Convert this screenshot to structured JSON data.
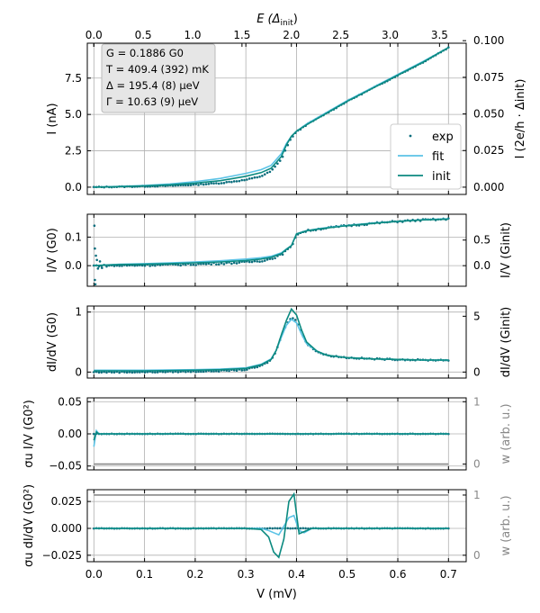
{
  "colors": {
    "exp": "#0b6e7d",
    "fit": "#5bc3e6",
    "init": "#0b8a80",
    "ref": "#888888",
    "grid": "#b0b0b0"
  },
  "top_axis": {
    "label": "E (Δinit)",
    "label_main": "E (Δ",
    "label_sub": "init",
    "label_end": ")",
    "ticks": [
      "0.0",
      "0.5",
      "1.0",
      "1.5",
      "2.0",
      "2.5",
      "3.0",
      "3.5"
    ],
    "tick_values": [
      0.0,
      0.5,
      1.0,
      1.5,
      2.0,
      2.5,
      3.0,
      3.5
    ],
    "range": [
      -0.066,
      3.77
    ]
  },
  "info_box": {
    "lines": [
      "G = 0.1886 G0",
      "T = 409.4 (392) mK",
      "Δ = 195.4 (8) μeV",
      "Γ = 10.63 (9) μeV"
    ]
  },
  "legend": {
    "items": [
      "exp",
      "fit",
      "init"
    ]
  },
  "chart_data": [
    {
      "type": "line",
      "panel": "I",
      "ylabel": "I (nA)",
      "ylabel_right": "I (2e/h · Δinit)",
      "yticks": [
        "0.0",
        "2.5",
        "5.0",
        "7.5"
      ],
      "ytick_values": [
        0.0,
        2.5,
        5.0,
        7.5
      ],
      "yticks_right": [
        "0.000",
        "0.025",
        "0.050",
        "0.075",
        "0.100"
      ],
      "ytick_values_right": [
        0.0,
        0.025,
        0.05,
        0.075,
        0.1
      ],
      "ylim": [
        -0.5,
        9.9
      ],
      "xlim": [
        -0.013,
        0.735
      ],
      "x": [
        0.0,
        0.05,
        0.1,
        0.15,
        0.2,
        0.25,
        0.3,
        0.33,
        0.35,
        0.37,
        0.38,
        0.39,
        0.4,
        0.42,
        0.45,
        0.5,
        0.55,
        0.6,
        0.65,
        0.7
      ],
      "series": [
        {
          "name": "exp",
          "values": [
            0.0,
            0.03,
            0.06,
            0.1,
            0.17,
            0.28,
            0.5,
            0.75,
            1.1,
            1.9,
            2.7,
            3.4,
            3.8,
            4.3,
            4.9,
            5.9,
            6.8,
            7.7,
            8.6,
            9.6
          ]
        },
        {
          "name": "fit",
          "values": [
            0.0,
            0.05,
            0.12,
            0.22,
            0.38,
            0.6,
            0.95,
            1.2,
            1.5,
            2.3,
            3.0,
            3.5,
            3.85,
            4.35,
            4.95,
            5.95,
            6.85,
            7.75,
            8.65,
            9.6
          ]
        },
        {
          "name": "init",
          "values": [
            0.0,
            0.04,
            0.09,
            0.16,
            0.28,
            0.45,
            0.75,
            1.0,
            1.3,
            2.1,
            2.9,
            3.5,
            3.85,
            4.3,
            4.9,
            5.9,
            6.8,
            7.7,
            8.6,
            9.6
          ]
        }
      ]
    },
    {
      "type": "line",
      "panel": "I/V",
      "ylabel": "I/V (G0)",
      "ylabel_right": "I/V (Ginit)",
      "yticks": [
        "0.0",
        "0.1"
      ],
      "ytick_values": [
        0.0,
        0.1
      ],
      "yticks_right": [
        "0.0",
        "0.5"
      ],
      "ytick_values_right": [
        0.0,
        0.5
      ],
      "ylim": [
        -0.072,
        0.18
      ],
      "xlim": [
        -0.013,
        0.735
      ],
      "x": [
        0.0,
        0.05,
        0.1,
        0.15,
        0.2,
        0.25,
        0.3,
        0.33,
        0.35,
        0.37,
        0.38,
        0.39,
        0.4,
        0.42,
        0.45,
        0.5,
        0.55,
        0.6,
        0.65,
        0.7
      ],
      "series": [
        {
          "name": "exp",
          "values": [
            0.0,
            0.0,
            0.002,
            0.003,
            0.005,
            0.008,
            0.012,
            0.017,
            0.024,
            0.038,
            0.053,
            0.065,
            0.11,
            0.122,
            0.13,
            0.14,
            0.148,
            0.155,
            0.16,
            0.163
          ]
        },
        {
          "name": "fit",
          "values": [
            0.0,
            0.005,
            0.007,
            0.01,
            0.013,
            0.017,
            0.023,
            0.028,
            0.033,
            0.045,
            0.058,
            0.07,
            0.112,
            0.123,
            0.131,
            0.141,
            0.149,
            0.155,
            0.161,
            0.164
          ]
        },
        {
          "name": "init",
          "values": [
            0.0,
            0.004,
            0.005,
            0.007,
            0.01,
            0.013,
            0.018,
            0.023,
            0.029,
            0.042,
            0.057,
            0.07,
            0.111,
            0.122,
            0.13,
            0.14,
            0.148,
            0.155,
            0.16,
            0.163
          ]
        }
      ]
    },
    {
      "type": "line",
      "panel": "dI/dV",
      "ylabel": "dI/dV (G0)",
      "ylabel_right": "dI/dV (Ginit)",
      "yticks": [
        "0",
        "1"
      ],
      "ytick_values": [
        0,
        1
      ],
      "yticks_right": [
        "0",
        "5"
      ],
      "ytick_values_right": [
        0,
        5
      ],
      "ylim": [
        -0.1,
        1.1
      ],
      "xlim": [
        -0.013,
        0.735
      ],
      "x": [
        0.0,
        0.1,
        0.2,
        0.25,
        0.3,
        0.33,
        0.35,
        0.36,
        0.37,
        0.38,
        0.39,
        0.4,
        0.41,
        0.42,
        0.44,
        0.46,
        0.5,
        0.55,
        0.6,
        0.65,
        0.7
      ],
      "series": [
        {
          "name": "exp",
          "values": [
            0.0,
            0.0,
            0.01,
            0.02,
            0.04,
            0.1,
            0.2,
            0.35,
            0.6,
            0.8,
            0.92,
            0.85,
            0.65,
            0.48,
            0.34,
            0.28,
            0.24,
            0.22,
            0.21,
            0.2,
            0.2
          ]
        },
        {
          "name": "fit",
          "values": [
            0.03,
            0.03,
            0.04,
            0.05,
            0.07,
            0.13,
            0.22,
            0.36,
            0.58,
            0.78,
            0.88,
            0.82,
            0.63,
            0.47,
            0.35,
            0.28,
            0.24,
            0.22,
            0.21,
            0.2,
            0.2
          ]
        },
        {
          "name": "init",
          "values": [
            0.02,
            0.02,
            0.03,
            0.04,
            0.06,
            0.12,
            0.21,
            0.36,
            0.62,
            0.86,
            1.05,
            0.95,
            0.7,
            0.5,
            0.35,
            0.28,
            0.24,
            0.22,
            0.21,
            0.2,
            0.2
          ]
        }
      ]
    },
    {
      "type": "line",
      "panel": "residual I/V",
      "ylabel": "σu I/V (G0²)",
      "ylabel_right": "w (arb. u.)",
      "yticks": [
        "0.05",
        "0.00",
        "−0.05"
      ],
      "ytick_values": [
        0.05,
        0.0,
        -0.05
      ],
      "yticks_right": [
        "1",
        "0"
      ],
      "ytick_values_right": [
        1,
        0
      ],
      "ylim": [
        -0.056,
        0.056
      ],
      "xlim": [
        -0.013,
        0.735
      ],
      "x": [
        0.0,
        0.005,
        0.01,
        0.1,
        0.3,
        0.5,
        0.7
      ],
      "series": [
        {
          "name": "exp",
          "values": [
            0.0,
            0.0,
            0.0,
            0.0,
            0.0,
            0.0,
            0.0
          ]
        },
        {
          "name": "fit",
          "values": [
            -0.02,
            0.005,
            0.0,
            0.0,
            0.0,
            0.0,
            0.0
          ]
        },
        {
          "name": "init",
          "values": [
            -0.01,
            0.003,
            0.0,
            0.0,
            0.0,
            0.0,
            0.0
          ]
        }
      ],
      "reference_line": -0.047
    },
    {
      "type": "line",
      "panel": "residual dI/dV",
      "ylabel": "σu dI/dV (G0²)",
      "ylabel_right": "w (arb. u.)",
      "yticks": [
        "0.025",
        "0.000",
        "−0.025"
      ],
      "ytick_values": [
        0.025,
        0.0,
        -0.025
      ],
      "yticks_right": [
        "1",
        "0"
      ],
      "ytick_values_right": [
        1,
        0
      ],
      "ylim": [
        -0.031,
        0.036
      ],
      "xlim": [
        -0.013,
        0.735
      ],
      "xlabel": "V (mV)",
      "xticks": [
        "0.0",
        "0.1",
        "0.2",
        "0.3",
        "0.4",
        "0.5",
        "0.6",
        "0.7"
      ],
      "xtick_values": [
        0.0,
        0.1,
        0.2,
        0.3,
        0.4,
        0.5,
        0.6,
        0.7
      ],
      "x": [
        0.0,
        0.1,
        0.2,
        0.3,
        0.33,
        0.345,
        0.355,
        0.365,
        0.375,
        0.385,
        0.395,
        0.405,
        0.415,
        0.43,
        0.5,
        0.6,
        0.7
      ],
      "series": [
        {
          "name": "exp",
          "values": [
            0.0,
            0.0,
            0.0,
            0.0,
            0.0,
            0.0,
            0.0,
            0.0,
            0.0,
            0.0,
            0.0,
            0.0,
            0.0,
            0.0,
            0.0,
            0.0,
            0.0
          ]
        },
        {
          "name": "fit",
          "values": [
            0.0,
            0.0,
            0.0,
            0.0,
            0.0,
            -0.002,
            -0.004,
            -0.006,
            0.002,
            0.01,
            0.012,
            -0.002,
            -0.004,
            0.0,
            0.0,
            0.0,
            0.0
          ]
        },
        {
          "name": "init",
          "values": [
            0.0,
            0.0,
            0.0,
            0.0,
            -0.001,
            -0.008,
            -0.022,
            -0.027,
            -0.01,
            0.025,
            0.032,
            -0.005,
            -0.003,
            0.0,
            0.0,
            0.0,
            0.0
          ]
        }
      ],
      "reference_line": 0.031
    }
  ]
}
